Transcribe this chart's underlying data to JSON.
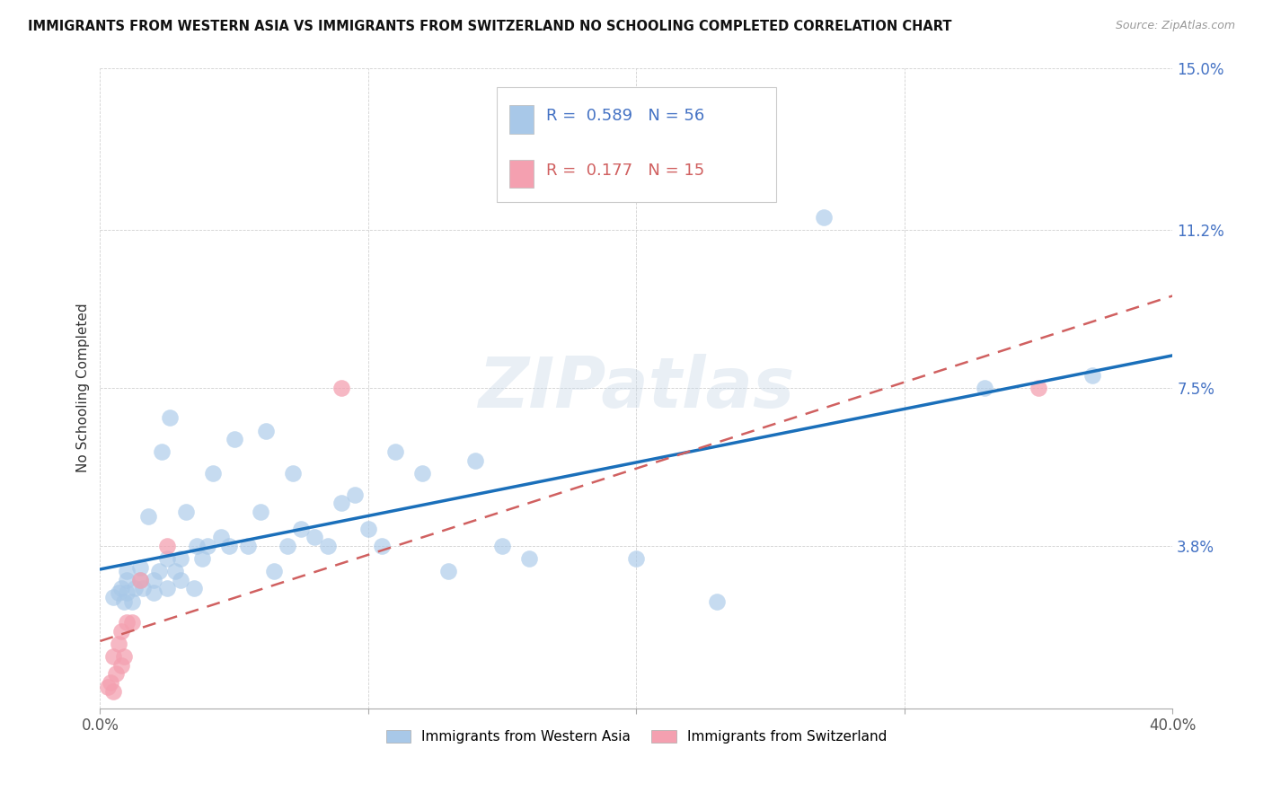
{
  "title": "IMMIGRANTS FROM WESTERN ASIA VS IMMIGRANTS FROM SWITZERLAND NO SCHOOLING COMPLETED CORRELATION CHART",
  "source": "Source: ZipAtlas.com",
  "ylabel": "No Schooling Completed",
  "legend1_label": "Immigrants from Western Asia",
  "legend2_label": "Immigrants from Switzerland",
  "r1": 0.589,
  "n1": 56,
  "r2": 0.177,
  "n2": 15,
  "xlim": [
    0.0,
    0.4
  ],
  "ylim": [
    0.0,
    0.15
  ],
  "ytick_positions": [
    0.0,
    0.038,
    0.075,
    0.112,
    0.15
  ],
  "ytick_labels": [
    "",
    "3.8%",
    "7.5%",
    "11.2%",
    "15.0%"
  ],
  "xtick_positions": [
    0.0,
    0.1,
    0.2,
    0.3,
    0.4
  ],
  "xtick_labels": [
    "0.0%",
    "",
    "",
    "",
    "40.0%"
  ],
  "blue_scatter": "#a8c8e8",
  "pink_scatter": "#f4a0b0",
  "line_blue": "#1a6fba",
  "line_pink": "#d06060",
  "background": "#ffffff",
  "watermark_text": "ZIPatlas",
  "western_asia_x": [
    0.005,
    0.007,
    0.008,
    0.009,
    0.01,
    0.01,
    0.01,
    0.012,
    0.013,
    0.015,
    0.015,
    0.016,
    0.018,
    0.02,
    0.02,
    0.022,
    0.023,
    0.025,
    0.025,
    0.026,
    0.028,
    0.03,
    0.03,
    0.032,
    0.035,
    0.036,
    0.038,
    0.04,
    0.042,
    0.045,
    0.048,
    0.05,
    0.055,
    0.06,
    0.062,
    0.065,
    0.07,
    0.072,
    0.075,
    0.08,
    0.085,
    0.09,
    0.095,
    0.1,
    0.105,
    0.11,
    0.12,
    0.13,
    0.14,
    0.15,
    0.16,
    0.2,
    0.23,
    0.27,
    0.33,
    0.37
  ],
  "western_asia_y": [
    0.026,
    0.027,
    0.028,
    0.025,
    0.027,
    0.03,
    0.032,
    0.025,
    0.028,
    0.03,
    0.033,
    0.028,
    0.045,
    0.027,
    0.03,
    0.032,
    0.06,
    0.028,
    0.035,
    0.068,
    0.032,
    0.03,
    0.035,
    0.046,
    0.028,
    0.038,
    0.035,
    0.038,
    0.055,
    0.04,
    0.038,
    0.063,
    0.038,
    0.046,
    0.065,
    0.032,
    0.038,
    0.055,
    0.042,
    0.04,
    0.038,
    0.048,
    0.05,
    0.042,
    0.038,
    0.06,
    0.055,
    0.032,
    0.058,
    0.038,
    0.035,
    0.035,
    0.025,
    0.115,
    0.075,
    0.078
  ],
  "switzerland_x": [
    0.003,
    0.004,
    0.005,
    0.005,
    0.006,
    0.007,
    0.008,
    0.008,
    0.009,
    0.01,
    0.012,
    0.015,
    0.025,
    0.09,
    0.35
  ],
  "switzerland_y": [
    0.005,
    0.006,
    0.004,
    0.012,
    0.008,
    0.015,
    0.01,
    0.018,
    0.012,
    0.02,
    0.02,
    0.03,
    0.038,
    0.075,
    0.075
  ]
}
